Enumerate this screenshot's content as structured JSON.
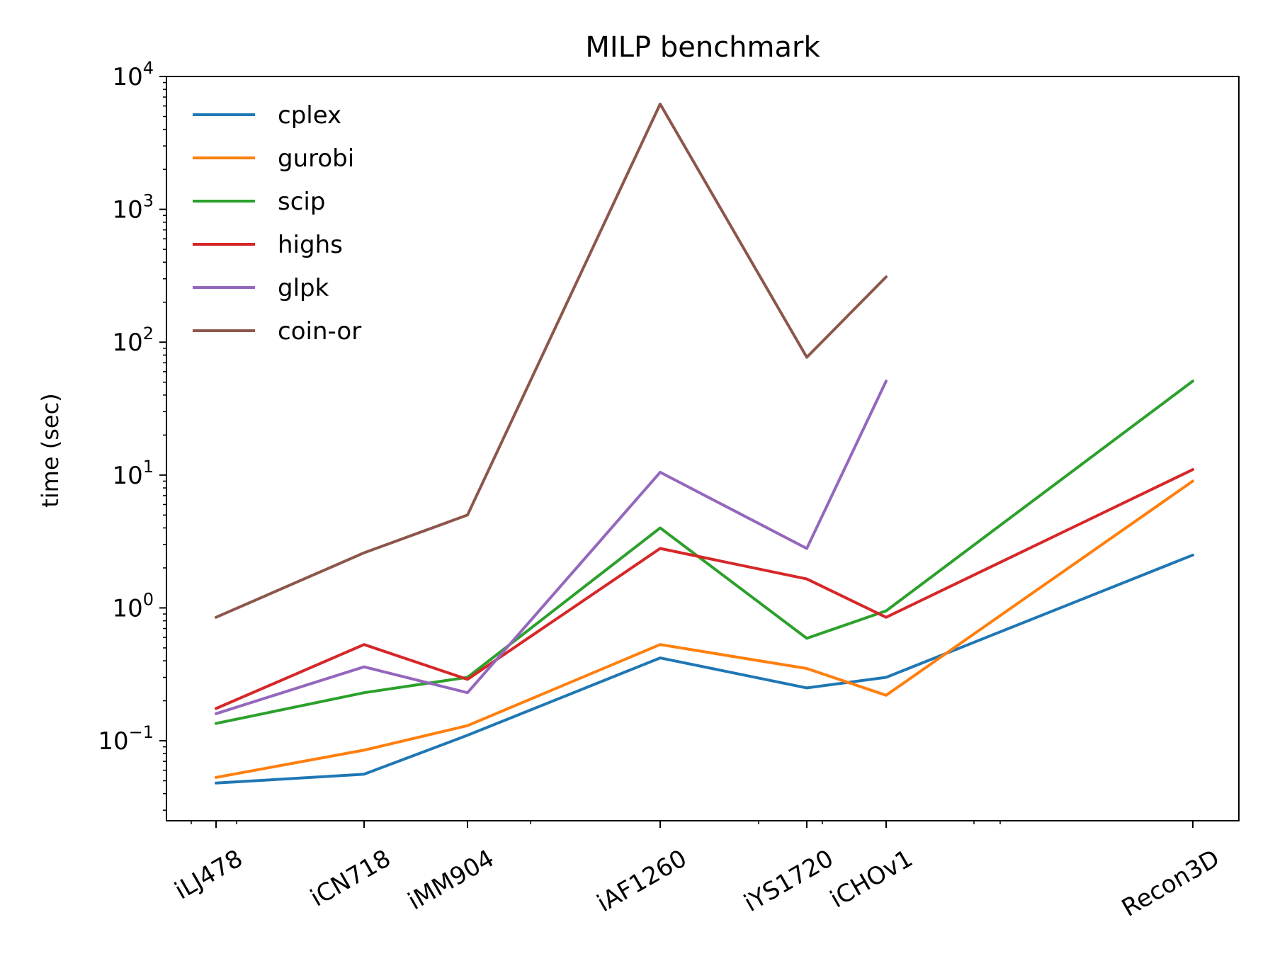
{
  "chart_data": {
    "type": "line",
    "title": "MILP benchmark",
    "xlabel": "",
    "ylabel": "time (sec)",
    "yscale": "log",
    "ylim": [
      0.025,
      10000
    ],
    "grid": false,
    "legend_position": "top-left",
    "categories": [
      "iLJ478",
      "iCN718",
      "iMM904",
      "iAF1260",
      "iYS1720",
      "iCHOv1",
      "Recon3D"
    ],
    "y_tick_labels": [
      {
        "value": 0.1,
        "base": "10",
        "exp": "−1"
      },
      {
        "value": 1,
        "base": "10",
        "exp": "0"
      },
      {
        "value": 10,
        "base": "10",
        "exp": "1"
      },
      {
        "value": 100,
        "base": "10",
        "exp": "2"
      },
      {
        "value": 1000,
        "base": "10",
        "exp": "3"
      },
      {
        "value": 10000,
        "base": "10",
        "exp": "4"
      }
    ],
    "series": [
      {
        "name": "cplex",
        "color": "#1f77b4",
        "values": [
          0.048,
          0.056,
          0.11,
          0.42,
          0.25,
          0.3,
          2.5
        ]
      },
      {
        "name": "gurobi",
        "color": "#ff7f0e",
        "values": [
          0.053,
          0.085,
          0.13,
          0.53,
          0.35,
          0.22,
          9.0
        ]
      },
      {
        "name": "scip",
        "color": "#2ca02c",
        "values": [
          0.135,
          0.23,
          0.3,
          4.0,
          0.59,
          0.95,
          51
        ]
      },
      {
        "name": "highs",
        "color": "#d62728",
        "values": [
          0.175,
          0.53,
          0.29,
          2.8,
          1.65,
          0.85,
          11
        ]
      },
      {
        "name": "glpk",
        "color": "#9467bd",
        "values": [
          0.16,
          0.36,
          0.23,
          10.5,
          2.8,
          51,
          null
        ]
      },
      {
        "name": "coin-or",
        "color": "#8c564b",
        "values": [
          0.85,
          2.6,
          5.0,
          6200,
          77,
          310,
          null
        ]
      }
    ]
  }
}
